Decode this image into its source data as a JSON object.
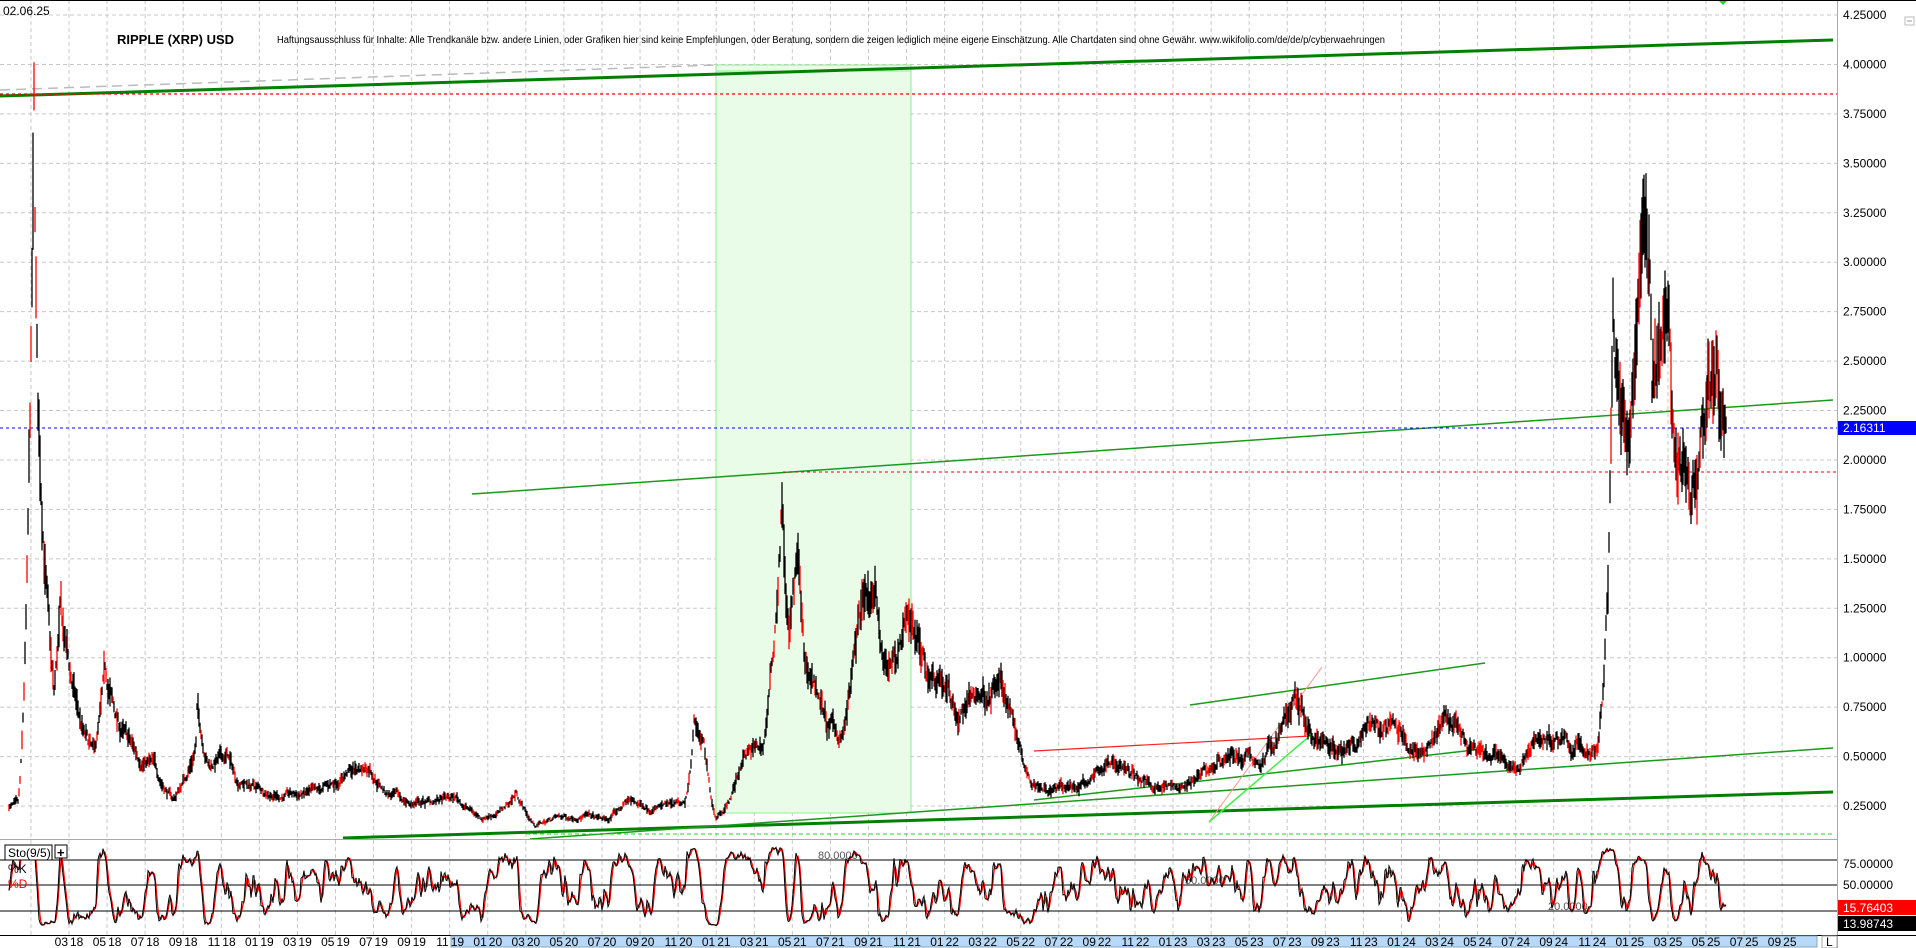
{
  "header": {
    "date": "02.06.25",
    "title": "RIPPLE (XRP) USD",
    "disclaimer": "Haftungsausschluss für Inhalte: Alle Trendkanäle bzw. andere Linien, oder Grafiken hier sind keine Empfehlungen, oder Beratung, sondern die zeigen lediglich meine eigene Einschätzung. Alle Chartdaten sind ohne Gewähr.  www.wikifolio.com/de/de/p/cyberwaehrungen"
  },
  "price_axis": {
    "ticks": [
      "4.25000",
      "4.00000",
      "3.75000",
      "3.50000",
      "3.25000",
      "3.00000",
      "2.75000",
      "2.50000",
      "2.25000",
      "2.00000",
      "1.75000",
      "1.50000",
      "1.25000",
      "1.00000",
      "0.75000",
      "0.50000",
      "0.25000"
    ],
    "current_price": "2.16311",
    "current_price_color": "#0000ff"
  },
  "indicator": {
    "name": "Sto(9/5)",
    "add_button": "+",
    "k_label": "%K",
    "d_label": "%D",
    "k_color": "#000000",
    "d_color": "#ff0000",
    "level_labels": [
      "80.0000",
      "50.0000",
      "20.0000"
    ],
    "axis_ticks": [
      "75.00000",
      "50.00000"
    ],
    "d_value": "15.76403",
    "k_value": "13.98743"
  },
  "time_axis": {
    "labels": [
      {
        "m": "03",
        "y": "18"
      },
      {
        "m": "05",
        "y": "18"
      },
      {
        "m": "07",
        "y": "18"
      },
      {
        "m": "09",
        "y": "18"
      },
      {
        "m": "11",
        "y": "18"
      },
      {
        "m": "01",
        "y": "19"
      },
      {
        "m": "03",
        "y": "19"
      },
      {
        "m": "05",
        "y": "19"
      },
      {
        "m": "07",
        "y": "19"
      },
      {
        "m": "09",
        "y": "19"
      },
      {
        "m": "11",
        "y": "19"
      },
      {
        "m": "01",
        "y": "20"
      },
      {
        "m": "03",
        "y": "20"
      },
      {
        "m": "05",
        "y": "20"
      },
      {
        "m": "07",
        "y": "20"
      },
      {
        "m": "09",
        "y": "20"
      },
      {
        "m": "11",
        "y": "20"
      },
      {
        "m": "01",
        "y": "21"
      },
      {
        "m": "03",
        "y": "21"
      },
      {
        "m": "05",
        "y": "21"
      },
      {
        "m": "07",
        "y": "21"
      },
      {
        "m": "09",
        "y": "21"
      },
      {
        "m": "11",
        "y": "21"
      },
      {
        "m": "01",
        "y": "22"
      },
      {
        "m": "03",
        "y": "22"
      },
      {
        "m": "05",
        "y": "22"
      },
      {
        "m": "07",
        "y": "22"
      },
      {
        "m": "09",
        "y": "22"
      },
      {
        "m": "11",
        "y": "22"
      },
      {
        "m": "01",
        "y": "23"
      },
      {
        "m": "03",
        "y": "23"
      },
      {
        "m": "05",
        "y": "23"
      },
      {
        "m": "07",
        "y": "23"
      },
      {
        "m": "09",
        "y": "23"
      },
      {
        "m": "11",
        "y": "23"
      },
      {
        "m": "01",
        "y": "24"
      },
      {
        "m": "03",
        "y": "24"
      },
      {
        "m": "05",
        "y": "24"
      },
      {
        "m": "07",
        "y": "24"
      },
      {
        "m": "09",
        "y": "24"
      },
      {
        "m": "11",
        "y": "24"
      },
      {
        "m": "01",
        "y": "25"
      },
      {
        "m": "03",
        "y": "25"
      },
      {
        "m": "05",
        "y": "25"
      },
      {
        "m": "07",
        "y": "25"
      },
      {
        "m": "09",
        "y": "25"
      }
    ],
    "end_label": "L"
  },
  "chart_data": {
    "type": "ohlc",
    "ylim": [
      0.15,
      4.3
    ],
    "grid": true,
    "up_color": "#000000",
    "down_color": "#ff0000",
    "series": [
      {
        "points": [
          [
            "2017-11-25",
            0.25
          ],
          [
            "2017-12-10",
            0.25
          ],
          [
            "2017-12-20",
            0.9
          ],
          [
            "2017-12-28",
            2.0
          ],
          [
            "2018-01-04",
            3.55
          ],
          [
            "2018-01-10",
            2.2
          ],
          [
            "2018-01-20",
            1.6
          ],
          [
            "2018-02-05",
            0.8
          ],
          [
            "2018-02-15",
            1.2
          ],
          [
            "2018-03-01",
            0.95
          ],
          [
            "2018-03-25",
            0.6
          ],
          [
            "2018-04-10",
            0.5
          ],
          [
            "2018-04-28",
            0.9
          ],
          [
            "2018-05-20",
            0.65
          ],
          [
            "2018-06-20",
            0.5
          ],
          [
            "2018-07-15",
            0.45
          ],
          [
            "2018-08-15",
            0.28
          ],
          [
            "2018-09-20",
            0.55
          ],
          [
            "2018-09-22",
            0.75
          ],
          [
            "2018-10-10",
            0.46
          ],
          [
            "2018-11-10",
            0.5
          ],
          [
            "2018-11-25",
            0.38
          ],
          [
            "2018-12-20",
            0.35
          ],
          [
            "2019-02-01",
            0.3
          ],
          [
            "2019-04-01",
            0.31
          ],
          [
            "2019-05-20",
            0.42
          ],
          [
            "2019-06-25",
            0.45
          ],
          [
            "2019-07-20",
            0.32
          ],
          [
            "2019-09-01",
            0.26
          ],
          [
            "2019-10-01",
            0.27
          ],
          [
            "2019-11-10",
            0.29
          ],
          [
            "2019-12-20",
            0.19
          ],
          [
            "2020-01-20",
            0.22
          ],
          [
            "2020-02-15",
            0.32
          ],
          [
            "2020-03-15",
            0.15
          ],
          [
            "2020-04-15",
            0.19
          ],
          [
            "2020-06-01",
            0.2
          ],
          [
            "2020-07-10",
            0.18
          ],
          [
            "2020-08-10",
            0.28
          ],
          [
            "2020-09-20",
            0.24
          ],
          [
            "2020-11-10",
            0.25
          ],
          [
            "2020-11-24",
            0.68
          ],
          [
            "2020-12-10",
            0.55
          ],
          [
            "2020-12-29",
            0.2
          ],
          [
            "2021-01-20",
            0.28
          ],
          [
            "2021-02-10",
            0.5
          ],
          [
            "2021-03-15",
            0.55
          ],
          [
            "2021-04-14",
            1.8
          ],
          [
            "2021-04-25",
            1.1
          ],
          [
            "2021-05-10",
            1.5
          ],
          [
            "2021-05-20",
            0.95
          ],
          [
            "2021-06-10",
            0.85
          ],
          [
            "2021-06-25",
            0.65
          ],
          [
            "2021-07-20",
            0.6
          ],
          [
            "2021-08-15",
            1.2
          ],
          [
            "2021-09-10",
            1.25
          ],
          [
            "2021-09-25",
            0.95
          ],
          [
            "2021-10-20",
            1.05
          ],
          [
            "2021-11-10",
            1.2
          ],
          [
            "2021-12-01",
            0.95
          ],
          [
            "2021-12-25",
            0.92
          ],
          [
            "2022-01-20",
            0.7
          ],
          [
            "2022-02-15",
            0.8
          ],
          [
            "2022-03-30",
            0.85
          ],
          [
            "2022-04-20",
            0.7
          ],
          [
            "2022-05-15",
            0.4
          ],
          [
            "2022-06-20",
            0.33
          ],
          [
            "2022-08-01",
            0.35
          ],
          [
            "2022-09-25",
            0.48
          ],
          [
            "2022-11-10",
            0.38
          ],
          [
            "2022-12-30",
            0.34
          ],
          [
            "2023-02-15",
            0.4
          ],
          [
            "2023-03-29",
            0.52
          ],
          [
            "2023-05-20",
            0.46
          ],
          [
            "2023-07-13",
            0.8
          ],
          [
            "2023-08-20",
            0.55
          ],
          [
            "2023-10-01",
            0.5
          ],
          [
            "2023-11-15",
            0.65
          ],
          [
            "2023-12-25",
            0.62
          ],
          [
            "2024-02-01",
            0.52
          ],
          [
            "2024-03-12",
            0.68
          ],
          [
            "2024-04-20",
            0.52
          ],
          [
            "2024-06-15",
            0.48
          ],
          [
            "2024-07-05",
            0.42
          ],
          [
            "2024-07-30",
            0.6
          ],
          [
            "2024-09-10",
            0.57
          ],
          [
            "2024-10-25",
            0.52
          ],
          [
            "2024-11-08",
            0.55
          ],
          [
            "2024-11-25",
            1.4
          ],
          [
            "2024-12-03",
            2.6
          ],
          [
            "2024-12-20",
            2.2
          ],
          [
            "2025-01-05",
            2.4
          ],
          [
            "2025-01-16",
            3.2
          ],
          [
            "2025-02-01",
            2.9
          ],
          [
            "2025-02-03",
            2.2
          ],
          [
            "2025-03-02",
            2.9
          ],
          [
            "2025-03-10",
            2.2
          ],
          [
            "2025-04-07",
            1.85
          ],
          [
            "2025-04-25",
            2.2
          ],
          [
            "2025-05-14",
            2.5
          ],
          [
            "2025-06-02",
            2.16311
          ]
        ]
      }
    ],
    "horizontal_levels": [
      {
        "price": 3.85,
        "color": "#ff0000",
        "style": "dashed"
      },
      {
        "price": 1.94,
        "color": "#ff0000",
        "style": "dashed"
      },
      {
        "price": 2.16311,
        "color": "#0000ff",
        "style": "dashed"
      }
    ],
    "highlight_zone": {
      "from": "2021-01-01",
      "to": "2021-11-15",
      "color": "#e8fce8"
    },
    "stochastic_levels": [
      80,
      50,
      20
    ]
  }
}
